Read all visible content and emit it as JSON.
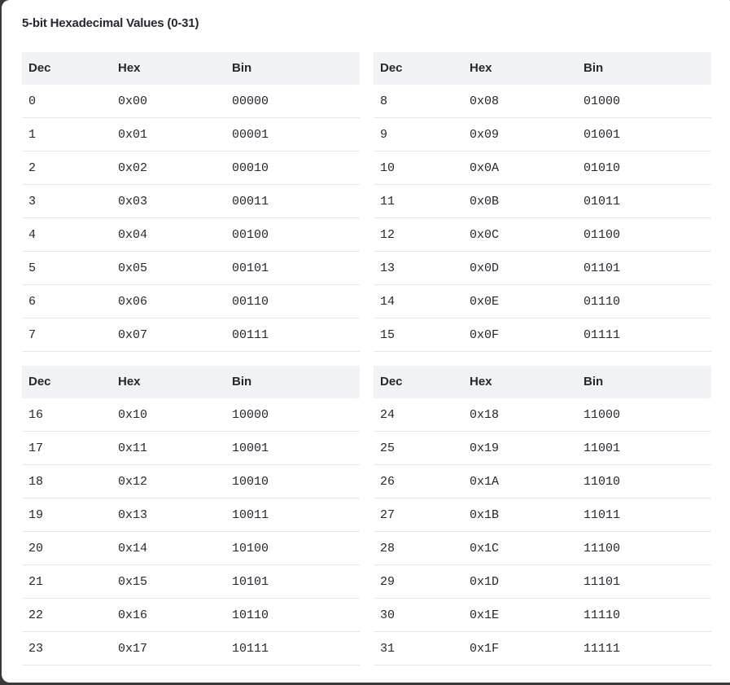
{
  "title": "5-bit Hexadecimal Values (0-31)",
  "tables": [
    {
      "headers": [
        "Dec",
        "Hex",
        "Bin"
      ],
      "rows": [
        [
          "0",
          "0x00",
          "00000"
        ],
        [
          "1",
          "0x01",
          "00001"
        ],
        [
          "2",
          "0x02",
          "00010"
        ],
        [
          "3",
          "0x03",
          "00011"
        ],
        [
          "4",
          "0x04",
          "00100"
        ],
        [
          "5",
          "0x05",
          "00101"
        ],
        [
          "6",
          "0x06",
          "00110"
        ],
        [
          "7",
          "0x07",
          "00111"
        ]
      ]
    },
    {
      "headers": [
        "Dec",
        "Hex",
        "Bin"
      ],
      "rows": [
        [
          "8",
          "0x08",
          "01000"
        ],
        [
          "9",
          "0x09",
          "01001"
        ],
        [
          "10",
          "0x0A",
          "01010"
        ],
        [
          "11",
          "0x0B",
          "01011"
        ],
        [
          "12",
          "0x0C",
          "01100"
        ],
        [
          "13",
          "0x0D",
          "01101"
        ],
        [
          "14",
          "0x0E",
          "01110"
        ],
        [
          "15",
          "0x0F",
          "01111"
        ]
      ]
    },
    {
      "headers": [
        "Dec",
        "Hex",
        "Bin"
      ],
      "rows": [
        [
          "16",
          "0x10",
          "10000"
        ],
        [
          "17",
          "0x11",
          "10001"
        ],
        [
          "18",
          "0x12",
          "10010"
        ],
        [
          "19",
          "0x13",
          "10011"
        ],
        [
          "20",
          "0x14",
          "10100"
        ],
        [
          "21",
          "0x15",
          "10101"
        ],
        [
          "22",
          "0x16",
          "10110"
        ],
        [
          "23",
          "0x17",
          "10111"
        ]
      ]
    },
    {
      "headers": [
        "Dec",
        "Hex",
        "Bin"
      ],
      "rows": [
        [
          "24",
          "0x18",
          "11000"
        ],
        [
          "25",
          "0x19",
          "11001"
        ],
        [
          "26",
          "0x1A",
          "11010"
        ],
        [
          "27",
          "0x1B",
          "11011"
        ],
        [
          "28",
          "0x1C",
          "11100"
        ],
        [
          "29",
          "0x1D",
          "11101"
        ],
        [
          "30",
          "0x1E",
          "11110"
        ],
        [
          "31",
          "0x1F",
          "11111"
        ]
      ]
    }
  ]
}
